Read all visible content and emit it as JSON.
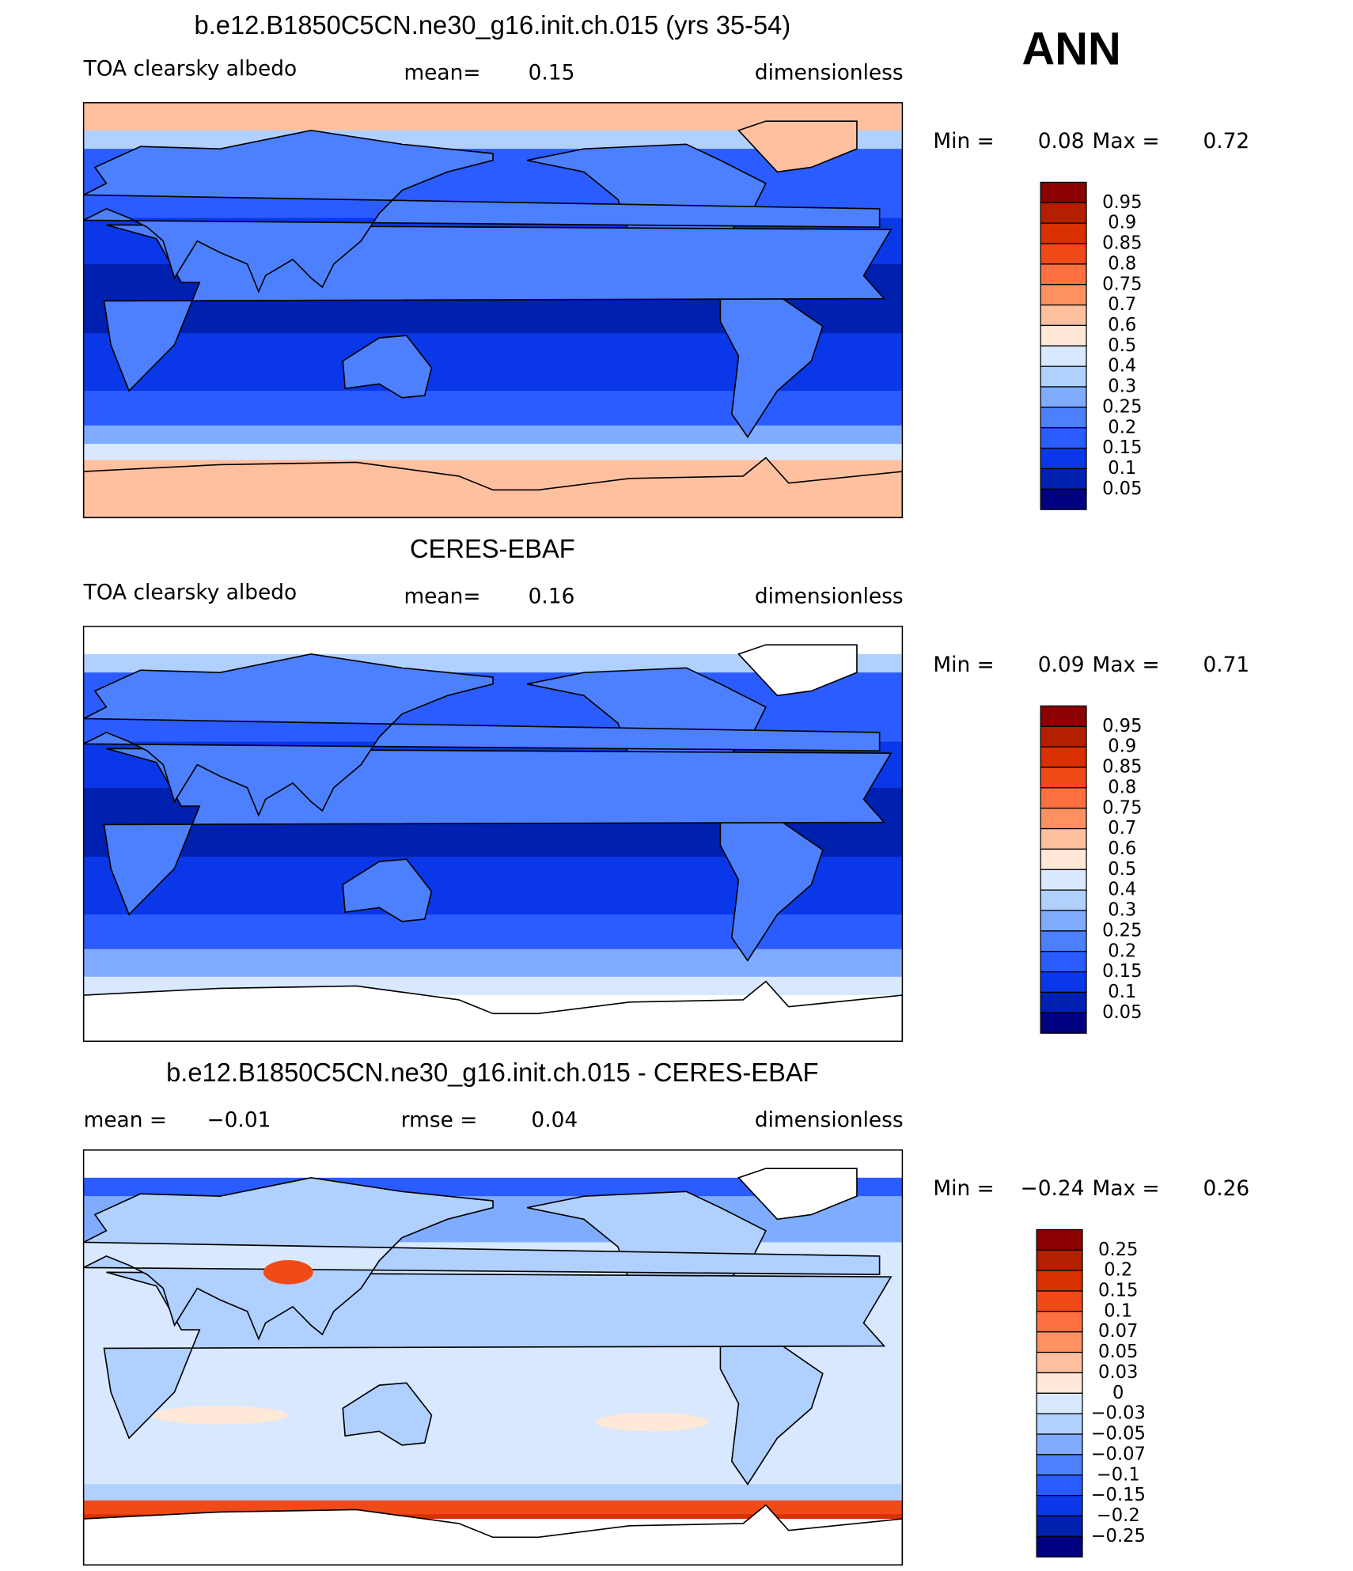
{
  "header": {
    "season": "ANN"
  },
  "panels": [
    {
      "title": "b.e12.B1850C5CN.ne30_g16.init.ch.015 (yrs 35-54)",
      "variable": "TOA clearsky albedo",
      "mean_label": "mean=",
      "mean_value": "0.15",
      "units": "dimensionless",
      "min_label": "Min =",
      "min_value": "0.08",
      "max_label": "Max =",
      "max_value": "0.72",
      "colorbar": {
        "labels": [
          "0.95",
          "0.9",
          "0.85",
          "0.8",
          "0.75",
          "0.7",
          "0.6",
          "0.5",
          "0.4",
          "0.3",
          "0.25",
          "0.2",
          "0.15",
          "0.1",
          "0.05"
        ],
        "colors": [
          "#8b0000",
          "#b22000",
          "#d83000",
          "#f04a18",
          "#ff7040",
          "#ff9060",
          "#ffc0a0",
          "#ffe8d8",
          "#d8e8ff",
          "#b0d0ff",
          "#80acff",
          "#4d80ff",
          "#2a5cff",
          "#0a38e8",
          "#0020b0",
          "#000080"
        ]
      }
    },
    {
      "title": "CERES-EBAF",
      "variable": "TOA clearsky albedo",
      "mean_label": "mean=",
      "mean_value": "0.16",
      "units": "dimensionless",
      "min_label": "Min =",
      "min_value": "0.09",
      "max_label": "Max =",
      "max_value": "0.71",
      "colorbar": {
        "labels": [
          "0.95",
          "0.9",
          "0.85",
          "0.8",
          "0.75",
          "0.7",
          "0.6",
          "0.5",
          "0.4",
          "0.3",
          "0.25",
          "0.2",
          "0.15",
          "0.1",
          "0.05"
        ],
        "colors": [
          "#8b0000",
          "#b22000",
          "#d83000",
          "#f04a18",
          "#ff7040",
          "#ff9060",
          "#ffc0a0",
          "#ffe8d8",
          "#d8e8ff",
          "#b0d0ff",
          "#80acff",
          "#4d80ff",
          "#2a5cff",
          "#0a38e8",
          "#0020b0",
          "#000080"
        ]
      }
    },
    {
      "title": "b.e12.B1850C5CN.ne30_g16.init.ch.015 - CERES-EBAF",
      "mean_label": "mean =",
      "mean_value": "−0.01",
      "rmse_label": "rmse =",
      "rmse_value": "0.04",
      "units": "dimensionless",
      "min_label": "Min =",
      "min_value": "−0.24",
      "max_label": "Max =",
      "max_value": "0.26",
      "colorbar": {
        "labels": [
          "0.25",
          "0.2",
          "0.15",
          "0.1",
          "0.07",
          "0.05",
          "0.03",
          "0",
          "−0.03",
          "−0.05",
          "−0.07",
          "−0.1",
          "−0.15",
          "−0.2",
          "−0.25"
        ],
        "colors": [
          "#8b0000",
          "#b22000",
          "#d83000",
          "#f04a18",
          "#ff7040",
          "#ff9060",
          "#ffc0a0",
          "#ffe8d8",
          "#d8e8ff",
          "#b0d0ff",
          "#80acff",
          "#4d80ff",
          "#2a5cff",
          "#0a38e8",
          "#0020b0",
          "#000080"
        ]
      }
    }
  ]
}
